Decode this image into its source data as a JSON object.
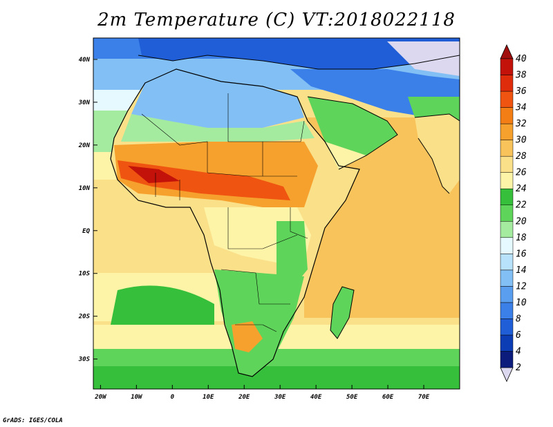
{
  "title": "2m Temperature (C) VT:2018022118",
  "credit": "GrADS: IGES/COLA",
  "map": {
    "lon_range": [
      -22,
      80
    ],
    "lat_range": [
      -37,
      45
    ],
    "x_ticks": [
      {
        "lon": -20,
        "label": "20W"
      },
      {
        "lon": -10,
        "label": "10W"
      },
      {
        "lon": 0,
        "label": "0"
      },
      {
        "lon": 10,
        "label": "10E"
      },
      {
        "lon": 20,
        "label": "20E"
      },
      {
        "lon": 30,
        "label": "30E"
      },
      {
        "lon": 40,
        "label": "40E"
      },
      {
        "lon": 50,
        "label": "50E"
      },
      {
        "lon": 60,
        "label": "60E"
      },
      {
        "lon": 70,
        "label": "70E"
      }
    ],
    "y_ticks": [
      {
        "lat": 40,
        "label": "40N"
      },
      {
        "lat": 30,
        "label": "30N"
      },
      {
        "lat": 20,
        "label": "20N"
      },
      {
        "lat": 10,
        "label": "10N"
      },
      {
        "lat": 0,
        "label": "EQ"
      },
      {
        "lat": -10,
        "label": "10S"
      },
      {
        "lat": -20,
        "label": "20S"
      },
      {
        "lat": -30,
        "label": "30S"
      }
    ]
  },
  "colorbar": {
    "labels": [
      "2",
      "4",
      "6",
      "8",
      "10",
      "12",
      "14",
      "16",
      "18",
      "20",
      "22",
      "24",
      "26",
      "28",
      "30",
      "32",
      "34",
      "36",
      "38",
      "40"
    ],
    "colors": [
      "#0b1c7c",
      "#0d3db5",
      "#1f5ed6",
      "#3a80e8",
      "#5a9ef0",
      "#82bff5",
      "#b8e2fb",
      "#e6f9ff",
      "#a4eba0",
      "#5fd45a",
      "#36bf3a",
      "#fdf4a8",
      "#fbe08a",
      "#f8c35a",
      "#f6a12d",
      "#f37e16",
      "#ef5510",
      "#df2d0c",
      "#c3120a"
    ],
    "below_color": "#dcd8ef",
    "above_color": "#a10e0e"
  }
}
